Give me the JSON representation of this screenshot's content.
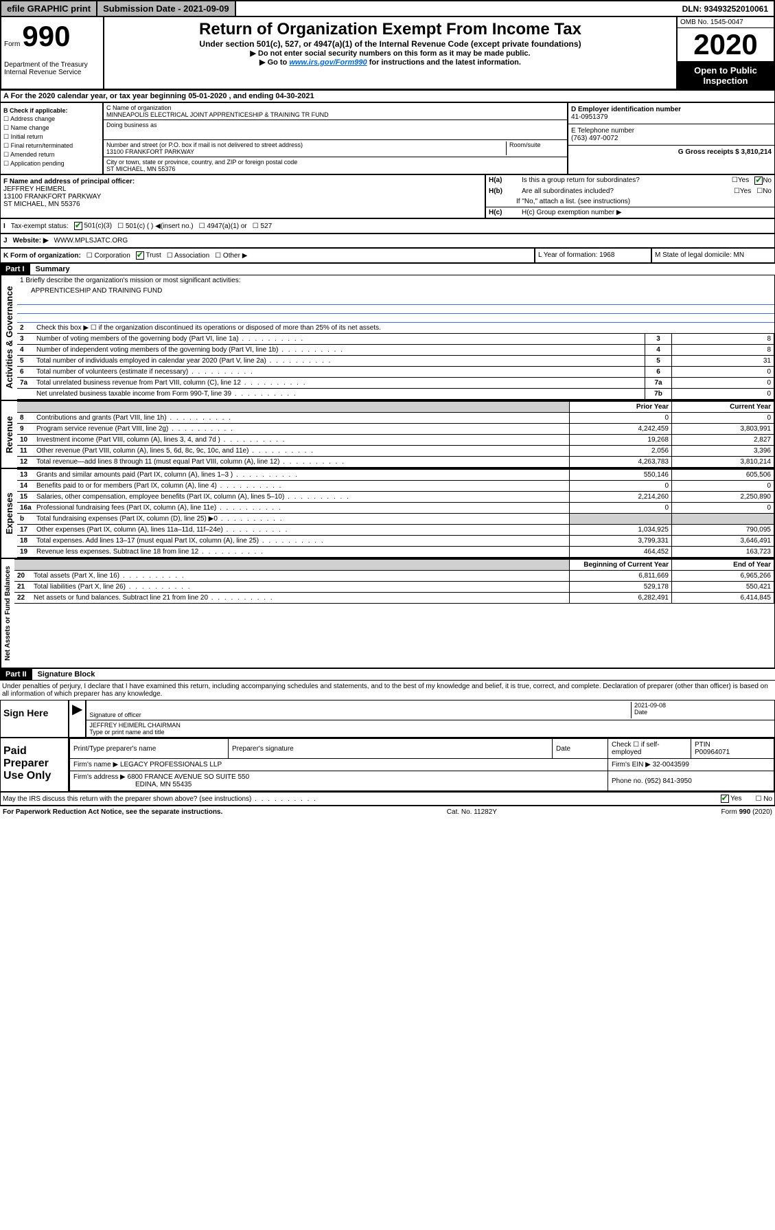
{
  "top": {
    "efile": "efile GRAPHIC print",
    "submission": "Submission Date - 2021-09-09",
    "dln": "DLN: 93493252010061"
  },
  "header": {
    "form_label": "Form",
    "form_num": "990",
    "dept": "Department of the Treasury\nInternal Revenue Service",
    "title": "Return of Organization Exempt From Income Tax",
    "subtitle": "Under section 501(c), 527, or 4947(a)(1) of the Internal Revenue Code (except private foundations)",
    "line1": "▶ Do not enter social security numbers on this form as it may be made public.",
    "line2_pre": "▶ Go to ",
    "line2_link": "www.irs.gov/Form990",
    "line2_post": " for instructions and the latest information.",
    "omb": "OMB No. 1545-0047",
    "year": "2020",
    "open": "Open to Public Inspection"
  },
  "a": {
    "text": "A For the 2020 calendar year, or tax year beginning 05-01-2020   , and ending 04-30-2021"
  },
  "b": {
    "label": "B Check if applicable:",
    "items": [
      "Address change",
      "Name change",
      "Initial return",
      "Final return/terminated",
      "Amended return",
      "Application pending"
    ]
  },
  "c": {
    "name_label": "C Name of organization",
    "name": "MINNEAPOLIS ELECTRICAL JOINT APPRENTICESHIP & TRAINING TR FUND",
    "dba_label": "Doing business as",
    "addr_label": "Number and street (or P.O. box if mail is not delivered to street address)",
    "addr": "13100 FRANKFORT PARKWAY",
    "room_label": "Room/suite",
    "city_label": "City or town, state or province, country, and ZIP or foreign postal code",
    "city": "ST MICHAEL, MN  55376"
  },
  "d": {
    "label": "D Employer identification number",
    "value": "41-0951379"
  },
  "e": {
    "label": "E Telephone number",
    "value": "(763) 497-0072"
  },
  "g": {
    "label": "G Gross receipts $ 3,810,214"
  },
  "f": {
    "label": "F  Name and address of principal officer:",
    "name": "JEFFREY HEIMERL",
    "addr1": "13100 FRANKFORT PARKWAY",
    "addr2": "ST MICHAEL, MN  55376"
  },
  "h": {
    "a_label": "H(a)  Is this a group return for subordinates?",
    "b_label": "H(b)  Are all subordinates included?",
    "note": "If \"No,\" attach a list. (see instructions)",
    "c_label": "H(c)  Group exemption number ▶"
  },
  "i": {
    "label": "Tax-exempt status:",
    "opt1": "501(c)(3)",
    "opt2": "501(c) (  ) ◀(insert no.)",
    "opt3": "4947(a)(1) or",
    "opt4": "527"
  },
  "j": {
    "label": "Website: ▶",
    "value": "WWW.MPLSJATC.ORG"
  },
  "k": {
    "label": "K Form of organization:",
    "opts": [
      "Corporation",
      "Trust",
      "Association",
      "Other ▶"
    ]
  },
  "l": {
    "label": "L Year of formation: 1968"
  },
  "m": {
    "label": "M State of legal domicile: MN"
  },
  "part1": {
    "header": "Part I",
    "title": "Summary",
    "q1": "1 Briefly describe the organization's mission or most significant activities:",
    "q1_ans": "APPRENTICESHIP AND TRAINING FUND",
    "q2": "Check this box ▶ ☐  if the organization discontinued its operations or disposed of more than 25% of its net assets.",
    "lines_simple": [
      {
        "n": "3",
        "label": "Number of voting members of the governing body (Part VI, line 1a)",
        "box": "3",
        "val": "8"
      },
      {
        "n": "4",
        "label": "Number of independent voting members of the governing body (Part VI, line 1b)",
        "box": "4",
        "val": "8"
      },
      {
        "n": "5",
        "label": "Total number of individuals employed in calendar year 2020 (Part V, line 2a)",
        "box": "5",
        "val": "31"
      },
      {
        "n": "6",
        "label": "Total number of volunteers (estimate if necessary)",
        "box": "6",
        "val": "0"
      },
      {
        "n": "7a",
        "label": "Total unrelated business revenue from Part VIII, column (C), line 12",
        "box": "7a",
        "val": "0"
      },
      {
        "n": "",
        "label": "Net unrelated business taxable income from Form 990-T, line 39",
        "box": "7b",
        "val": "0"
      }
    ],
    "prior_year": "Prior Year",
    "current_year": "Current Year",
    "beg_year": "Beginning of Current Year",
    "end_year": "End of Year",
    "revenue": [
      {
        "n": "8",
        "label": "Contributions and grants (Part VIII, line 1h)",
        "p": "0",
        "c": "0"
      },
      {
        "n": "9",
        "label": "Program service revenue (Part VIII, line 2g)",
        "p": "4,242,459",
        "c": "3,803,991"
      },
      {
        "n": "10",
        "label": "Investment income (Part VIII, column (A), lines 3, 4, and 7d )",
        "p": "19,268",
        "c": "2,827"
      },
      {
        "n": "11",
        "label": "Other revenue (Part VIII, column (A), lines 5, 6d, 8c, 9c, 10c, and 11e)",
        "p": "2,056",
        "c": "3,396"
      },
      {
        "n": "12",
        "label": "Total revenue—add lines 8 through 11 (must equal Part VIII, column (A), line 12)",
        "p": "4,263,783",
        "c": "3,810,214"
      }
    ],
    "expenses": [
      {
        "n": "13",
        "label": "Grants and similar amounts paid (Part IX, column (A), lines 1–3 )",
        "p": "550,146",
        "c": "605,506"
      },
      {
        "n": "14",
        "label": "Benefits paid to or for members (Part IX, column (A), line 4)",
        "p": "0",
        "c": "0"
      },
      {
        "n": "15",
        "label": "Salaries, other compensation, employee benefits (Part IX, column (A), lines 5–10)",
        "p": "2,214,260",
        "c": "2,250,890"
      },
      {
        "n": "16a",
        "label": "Professional fundraising fees (Part IX, column (A), line 11e)",
        "p": "0",
        "c": "0"
      },
      {
        "n": "b",
        "label": "Total fundraising expenses (Part IX, column (D), line 25) ▶0",
        "p": "",
        "c": "",
        "gray": true
      },
      {
        "n": "17",
        "label": "Other expenses (Part IX, column (A), lines 11a–11d, 11f–24e)",
        "p": "1,034,925",
        "c": "790,095"
      },
      {
        "n": "18",
        "label": "Total expenses. Add lines 13–17 (must equal Part IX, column (A), line 25)",
        "p": "3,799,331",
        "c": "3,646,491"
      },
      {
        "n": "19",
        "label": "Revenue less expenses. Subtract line 18 from line 12",
        "p": "464,452",
        "c": "163,723"
      }
    ],
    "net": [
      {
        "n": "20",
        "label": "Total assets (Part X, line 16)",
        "p": "6,811,669",
        "c": "6,965,266"
      },
      {
        "n": "21",
        "label": "Total liabilities (Part X, line 26)",
        "p": "529,178",
        "c": "550,421"
      },
      {
        "n": "22",
        "label": "Net assets or fund balances. Subtract line 21 from line 20",
        "p": "6,282,491",
        "c": "6,414,845"
      }
    ],
    "vert_gov": "Activities & Governance",
    "vert_rev": "Revenue",
    "vert_exp": "Expenses",
    "vert_net": "Net Assets or Fund Balances"
  },
  "part2": {
    "header": "Part II",
    "title": "Signature Block",
    "perjury": "Under penalties of perjury, I declare that I have examined this return, including accompanying schedules and statements, and to the best of my knowledge and belief, it is true, correct, and complete. Declaration of preparer (other than officer) is based on all information of which preparer has any knowledge."
  },
  "sign": {
    "label": "Sign Here",
    "sig_label": "Signature of officer",
    "date": "2021-09-08",
    "date_label": "Date",
    "name": "JEFFREY HEIMERL CHAIRMAN",
    "name_label": "Type or print name and title"
  },
  "preparer": {
    "label": "Paid Preparer Use Only",
    "print_label": "Print/Type preparer's name",
    "sig_label": "Preparer's signature",
    "date_label": "Date",
    "check_label": "Check ☐ if self-employed",
    "ptin_label": "PTIN",
    "ptin": "P00964071",
    "firm_name_label": "Firm's name    ▶",
    "firm_name": "LEGACY PROFESSIONALS LLP",
    "firm_ein_label": "Firm's EIN ▶ 32-0043599",
    "firm_addr_label": "Firm's address ▶",
    "firm_addr": "6800 FRANCE AVENUE SO SUITE 550",
    "firm_addr2": "EDINA, MN  55435",
    "phone_label": "Phone no. (952) 841-3950"
  },
  "discuss": {
    "text": "May the IRS discuss this return with the preparer shown above? (see instructions)",
    "yes": "Yes",
    "no": "No"
  },
  "footer": {
    "left": "For Paperwork Reduction Act Notice, see the separate instructions.",
    "mid": "Cat. No. 11282Y",
    "right": "Form 990 (2020)"
  }
}
